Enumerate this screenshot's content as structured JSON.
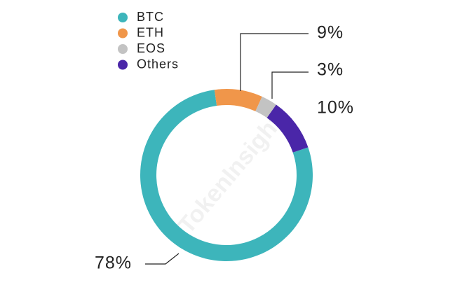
{
  "chart_data": {
    "type": "pie",
    "donut": true,
    "categories": [
      "BTC",
      "ETH",
      "EOS",
      "Others"
    ],
    "values": [
      78,
      9,
      3,
      10
    ],
    "value_labels": [
      "78%",
      "9%",
      "3%",
      "10%"
    ],
    "colors": [
      "#3db5bb",
      "#f0964a",
      "#c3c3c3",
      "#4a26a8"
    ],
    "watermark": "TokenInsight"
  }
}
